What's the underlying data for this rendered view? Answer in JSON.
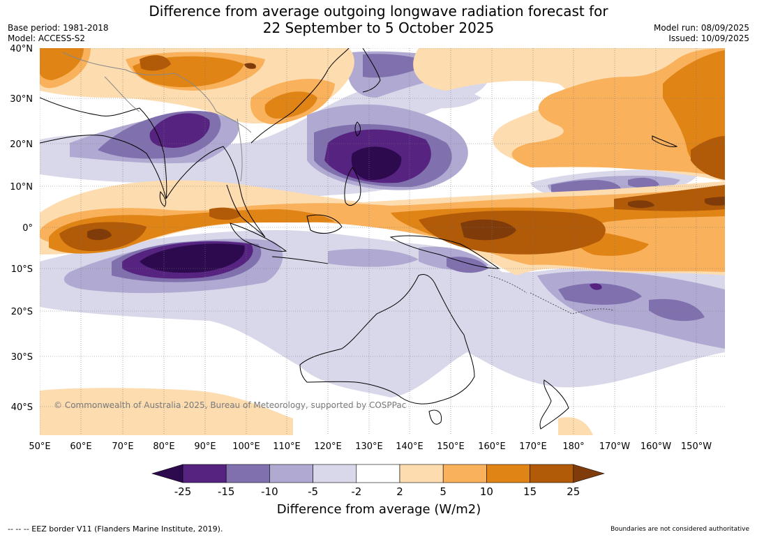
{
  "title": {
    "line1": "Difference from average outgoing longwave radiation forecast for",
    "line2": "22 September to 5 October 2025"
  },
  "meta": {
    "base_period": "Base period: 1981-2018",
    "model": "Model: ACCESS-S2",
    "model_run": "Model run: 08/09/2025",
    "issued": "Issued: 10/09/2025"
  },
  "map": {
    "lat_labels": [
      "40°N",
      "30°N",
      "20°N",
      "10°N",
      "0°",
      "10°S",
      "20°S",
      "30°S",
      "40°S"
    ],
    "lon_labels": [
      "50°E",
      "60°E",
      "70°E",
      "80°E",
      "90°E",
      "100°E",
      "110°E",
      "120°E",
      "130°E",
      "140°E",
      "150°E",
      "160°E",
      "170°E",
      "180°",
      "170°W",
      "160°W",
      "150°W"
    ],
    "copyright": "© Commonwealth of Australia 2025, Bureau of Meteorology, supported by COSPPac",
    "land_color": "#ffffff",
    "coast_color": "#000000",
    "border_color": "#888888"
  },
  "colorbar": {
    "tick_labels": [
      "-25",
      "-15",
      "-10",
      "-5",
      "-2",
      "2",
      "5",
      "10",
      "15",
      "25"
    ],
    "colors": [
      "#2d0a4e",
      "#562380",
      "#8070ae",
      "#b0a9d2",
      "#d8d8ea",
      "#ffffff",
      "#fddcb0",
      "#f9b15c",
      "#e08416",
      "#b15a08",
      "#7f3c0a"
    ],
    "title": "Difference from average (W/m2)"
  },
  "footer": {
    "eez": "--  --  -- EEZ border V11 (Flanders Marine Institute, 2019).",
    "disclaimer": "Boundaries are not considered authoritative"
  }
}
